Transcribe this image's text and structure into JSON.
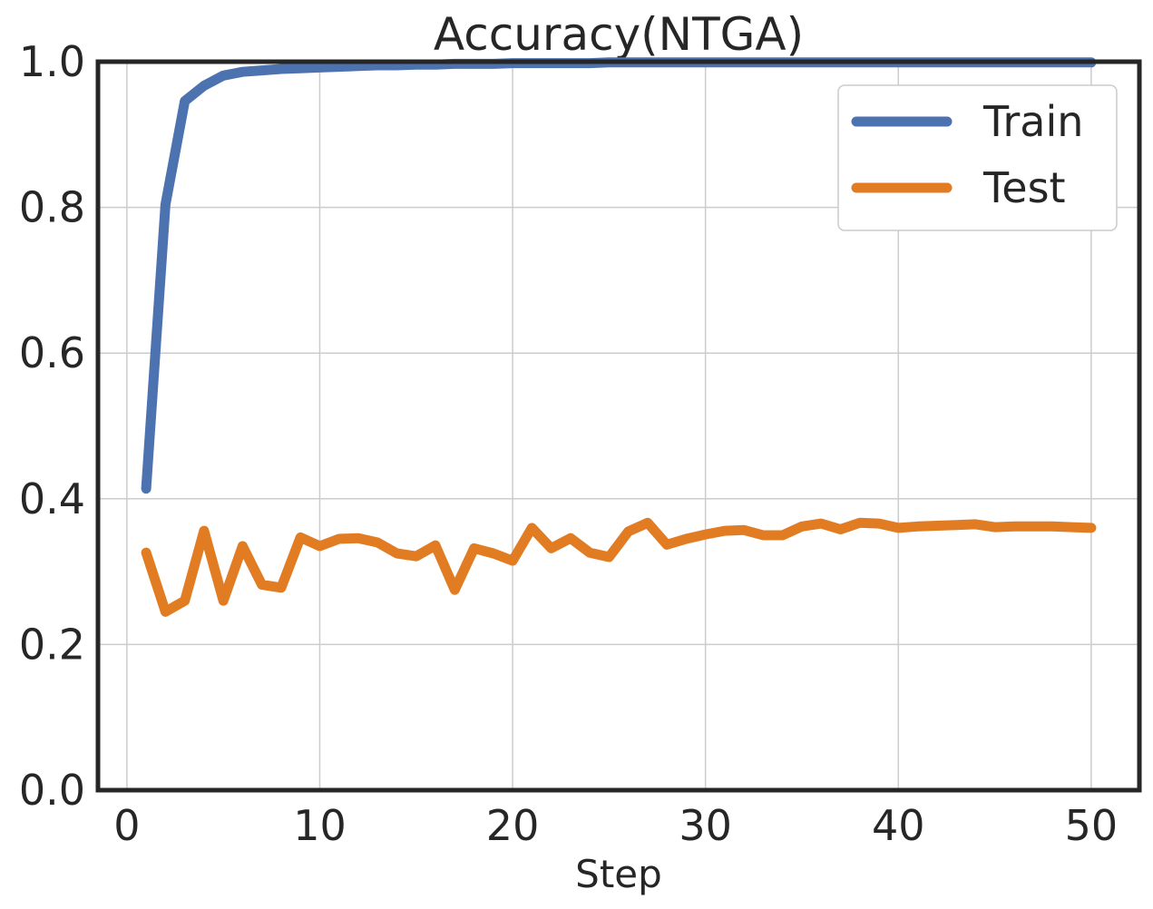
{
  "chart_data": {
    "type": "line",
    "title": "Accuracy(NTGA)",
    "xlabel": "Step",
    "ylabel": "",
    "xlim": [
      -1.5,
      52.5
    ],
    "ylim": [
      0.0,
      1.0
    ],
    "xticks": [
      0,
      10,
      20,
      30,
      40,
      50
    ],
    "yticks": [
      0.0,
      0.2,
      0.4,
      0.6,
      0.8,
      1.0
    ],
    "xtick_labels": [
      "0",
      "10",
      "20",
      "30",
      "40",
      "50"
    ],
    "ytick_labels": [
      "0.0",
      "0.2",
      "0.4",
      "0.6",
      "0.8",
      "1.0"
    ],
    "grid": true,
    "legend_position": "top-right",
    "x": [
      1,
      2,
      3,
      4,
      5,
      6,
      7,
      8,
      9,
      10,
      11,
      12,
      13,
      14,
      15,
      16,
      17,
      18,
      19,
      20,
      21,
      22,
      23,
      24,
      25,
      26,
      27,
      28,
      29,
      30,
      31,
      32,
      33,
      34,
      35,
      36,
      37,
      38,
      39,
      40,
      41,
      42,
      43,
      44,
      45,
      46,
      47,
      48,
      49,
      50
    ],
    "series": [
      {
        "name": "Train",
        "color": "#4c72b0",
        "values": [
          0.414,
          0.804,
          0.946,
          0.967,
          0.981,
          0.986,
          0.988,
          0.99,
          0.991,
          0.992,
          0.993,
          0.994,
          0.995,
          0.995,
          0.996,
          0.996,
          0.997,
          0.997,
          0.997,
          0.998,
          0.998,
          0.998,
          0.998,
          0.998,
          0.999,
          0.999,
          0.999,
          0.999,
          0.999,
          0.999,
          0.999,
          0.999,
          0.999,
          0.999,
          0.999,
          0.999,
          0.999,
          0.999,
          0.999,
          0.999,
          0.999,
          0.999,
          0.999,
          0.999,
          0.999,
          0.999,
          0.999,
          0.999,
          0.999,
          0.999
        ]
      },
      {
        "name": "Test",
        "color": "#e17c23",
        "values": [
          0.326,
          0.245,
          0.26,
          0.356,
          0.26,
          0.335,
          0.282,
          0.278,
          0.347,
          0.335,
          0.345,
          0.346,
          0.34,
          0.325,
          0.321,
          0.336,
          0.275,
          0.332,
          0.325,
          0.315,
          0.36,
          0.332,
          0.346,
          0.326,
          0.32,
          0.355,
          0.367,
          0.337,
          0.345,
          0.351,
          0.356,
          0.357,
          0.35,
          0.35,
          0.362,
          0.366,
          0.358,
          0.367,
          0.366,
          0.36,
          0.362,
          0.363,
          0.364,
          0.365,
          0.361,
          0.362,
          0.362,
          0.362,
          0.361,
          0.36
        ]
      }
    ]
  },
  "style": {
    "axis_color": "#262626",
    "grid_color": "#cccccc",
    "background": "#ffffff"
  }
}
